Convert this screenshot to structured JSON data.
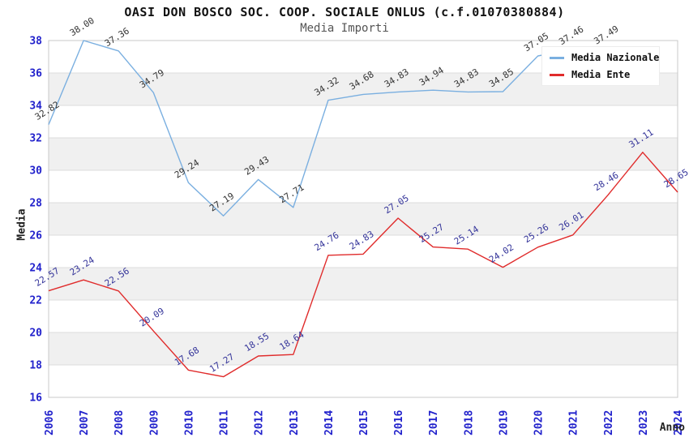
{
  "chart_data": {
    "type": "line",
    "title": "OASI DON BOSCO SOC. COOP. SOCIALE ONLUS (c.f.01070380884)",
    "subtitle": "Media Importi",
    "xlabel": "Anno",
    "ylabel": "Media",
    "ylim": [
      16,
      38
    ],
    "yticks": [
      16,
      18,
      20,
      22,
      24,
      26,
      28,
      30,
      32,
      34,
      36,
      38
    ],
    "grid": "horizontal gridlines with alternating gray bands",
    "legend_position": "top-right",
    "categories": [
      "2006",
      "2007",
      "2008",
      "2009",
      "2010",
      "2011",
      "2012",
      "2013",
      "2014",
      "2015",
      "2016",
      "2017",
      "2018",
      "2019",
      "2020",
      "2021",
      "2022",
      "2023",
      "2024"
    ],
    "series": [
      {
        "name": "Media Nazionale",
        "color": "#7aafe0",
        "label_color": "#333333",
        "values": [
          32.82,
          38.0,
          37.36,
          34.79,
          29.24,
          27.19,
          29.43,
          27.71,
          34.32,
          34.68,
          34.83,
          34.94,
          34.83,
          34.85,
          37.05,
          37.46,
          37.49,
          null,
          null
        ]
      },
      {
        "name": "Media Ente",
        "color": "#e02b2b",
        "label_color": "#333399",
        "values": [
          22.57,
          23.24,
          22.56,
          20.09,
          17.68,
          17.27,
          18.55,
          18.64,
          24.76,
          24.83,
          27.05,
          25.27,
          25.14,
          24.02,
          25.26,
          26.01,
          28.46,
          31.11,
          28.65
        ]
      }
    ],
    "colors": {
      "tick_label": "#2222cc",
      "axis_title": "#222222",
      "band": "#f0f0f0",
      "gridline": "#dcdcdc",
      "border": "#c8c8c8"
    }
  }
}
